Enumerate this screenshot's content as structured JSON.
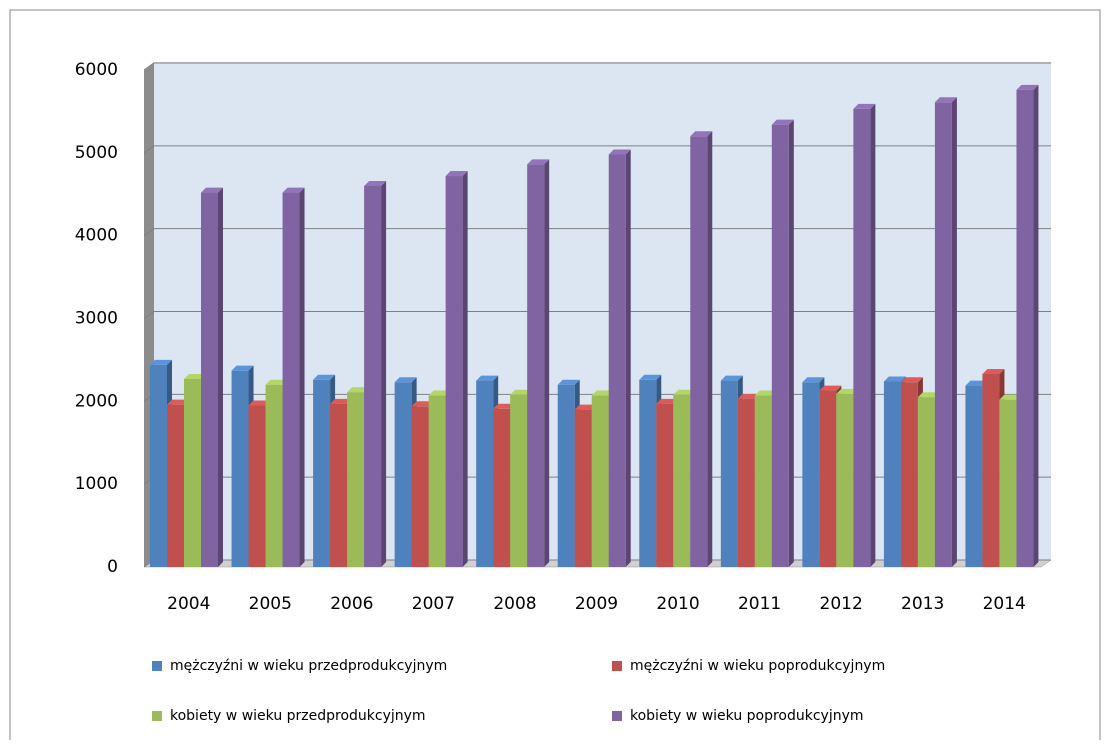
{
  "chart_data": {
    "type": "bar3d",
    "categories": [
      "2004",
      "2005",
      "2006",
      "2007",
      "2008",
      "2009",
      "2010",
      "2011",
      "2012",
      "2013",
      "2014"
    ],
    "series": [
      {
        "name": "mężczyźni w wieku przedprodukcyjnym",
        "color": "#4f81bd",
        "values": [
          2440,
          2370,
          2260,
          2230,
          2250,
          2200,
          2260,
          2250,
          2230,
          2240,
          2190
        ]
      },
      {
        "name": "mężczyźni w wieku poprodukcyjnym",
        "color": "#c0504d",
        "values": [
          1960,
          1950,
          1970,
          1940,
          1910,
          1900,
          1970,
          2030,
          2130,
          2230,
          2330
        ]
      },
      {
        "name": "kobiety w wieku przedprodukcyjnym",
        "color": "#9bbb59",
        "values": [
          2270,
          2200,
          2110,
          2070,
          2080,
          2070,
          2080,
          2070,
          2090,
          2050,
          2020
        ]
      },
      {
        "name": "kobiety w wieku poprodukcyjnym",
        "color": "#8064a2",
        "values": [
          4520,
          4520,
          4600,
          4720,
          4860,
          4980,
          5200,
          5340,
          5530,
          5610,
          5760
        ]
      }
    ],
    "ylim": [
      0,
      6000
    ],
    "yticks": [
      0,
      1000,
      2000,
      3000,
      4000,
      5000,
      6000
    ],
    "grid": true,
    "legend": "bottom"
  }
}
